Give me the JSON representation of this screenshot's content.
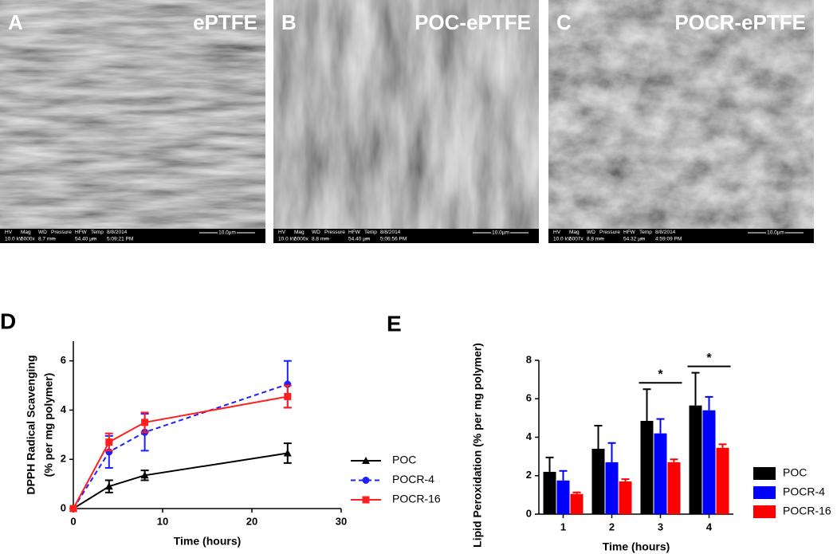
{
  "info_labels": [
    "HV",
    "Mag",
    "WD",
    "Pressure",
    "HFW",
    "Temp"
  ],
  "panels": [
    {
      "letter": "A",
      "title": "ePTFE",
      "info": [
        "10.0 kV",
        "5000x",
        "8.7 mm",
        "---",
        "54.40 µm",
        "---"
      ],
      "date": "8/8/2014",
      "time": "5:09:21 PM",
      "scale": "10.0µm"
    },
    {
      "letter": "B",
      "title": "POC-ePTFE",
      "info": [
        "10.0 kV",
        "5000x",
        "8.8 mm",
        "---",
        "54.40 µm",
        "---"
      ],
      "date": "8/8/2014",
      "time": "5:06:56 PM",
      "scale": "10.0µm"
    },
    {
      "letter": "C",
      "title": "POCR-ePTFE",
      "info": [
        "10.0 kV",
        "5007x",
        "8.8 mm",
        "---",
        "54.32 µm",
        "---"
      ],
      "date": "8/8/2014",
      "time": "4:59:09 PM",
      "scale": "10.0µm"
    }
  ],
  "chart_data": [
    {
      "type": "line",
      "panel": "D",
      "xlabel": "Time (hours)",
      "ylabel": [
        "DPPH Radical Scavenging",
        "(% per mg polymer)"
      ],
      "x": [
        0,
        4,
        8,
        24
      ],
      "xlim": [
        0,
        30
      ],
      "xticks": [
        0,
        10,
        20,
        30
      ],
      "ylim": [
        0,
        6.8
      ],
      "yticks": [
        0,
        2,
        4,
        6
      ],
      "series": [
        {
          "name": "POC",
          "color": "#000000",
          "marker": "triangle",
          "dashed": false,
          "values": [
            0,
            0.9,
            1.35,
            2.25
          ],
          "errors": [
            0,
            0.25,
            0.2,
            0.4
          ]
        },
        {
          "name": "POCR-4",
          "color": "#1f1fff",
          "marker": "circle",
          "dashed": true,
          "values": [
            0,
            2.3,
            3.1,
            5.05
          ],
          "errors": [
            0,
            0.65,
            0.75,
            0.95
          ]
        },
        {
          "name": "POCR-16",
          "color": "#ff1f1f",
          "marker": "square",
          "dashed": false,
          "values": [
            0,
            2.7,
            3.5,
            4.55
          ],
          "errors": [
            0,
            0.35,
            0.4,
            0.45
          ]
        }
      ]
    },
    {
      "type": "bar",
      "panel": "E",
      "xlabel": "Time (hours)",
      "ylabel": "Lipid Peroxidation (% per mg polymer)",
      "categories": [
        "1",
        "2",
        "3",
        "4"
      ],
      "ylim": [
        0,
        8
      ],
      "yticks": [
        0,
        2,
        4,
        6,
        8
      ],
      "significance": [
        null,
        null,
        "*",
        "*"
      ],
      "series": [
        {
          "name": "POC",
          "color": "#000000",
          "values": [
            2.2,
            3.4,
            4.85,
            5.65
          ],
          "errors": [
            0.75,
            1.2,
            1.65,
            1.7
          ]
        },
        {
          "name": "POCR-4",
          "color": "#0000ff",
          "values": [
            1.75,
            2.7,
            4.2,
            5.4
          ],
          "errors": [
            0.5,
            1.0,
            0.75,
            0.7
          ]
        },
        {
          "name": "POCR-16",
          "color": "#ff0000",
          "values": [
            1.05,
            1.7,
            2.7,
            3.45
          ],
          "errors": [
            0.08,
            0.12,
            0.15,
            0.18
          ]
        }
      ]
    }
  ]
}
